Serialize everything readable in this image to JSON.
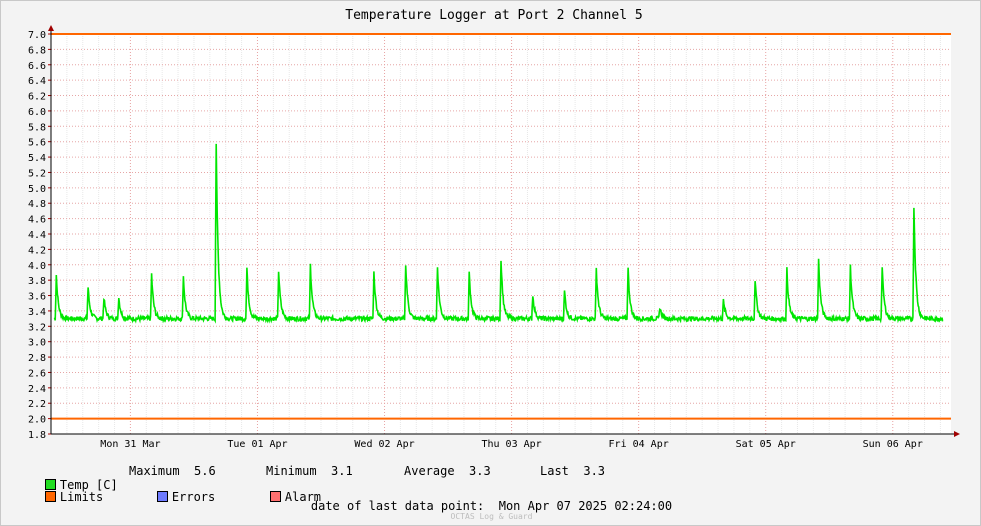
{
  "chart_data": {
    "type": "line",
    "title": "Temperature Logger at Port 2 Channel 5",
    "ylim": [
      1.8,
      7.0
    ],
    "y_ticks": [
      "7.0",
      "6.8",
      "6.6",
      "6.4",
      "6.2",
      "6.0",
      "5.8",
      "5.6",
      "5.4",
      "5.2",
      "5.0",
      "4.8",
      "4.6",
      "4.4",
      "4.2",
      "4.0",
      "3.8",
      "3.6",
      "3.4",
      "3.2",
      "3.0",
      "2.8",
      "2.6",
      "2.4",
      "2.2",
      "2.0",
      "1.8"
    ],
    "x_ticks": [
      "Mon 31 Mar",
      "Tue 01 Apr",
      "Wed 02 Apr",
      "Thu 03 Apr",
      "Fri 04 Apr",
      "Sat 05 Apr",
      "Sun 06 Apr"
    ],
    "x_range_hours": [
      0,
      170
    ],
    "day_tick_offset_hours": 3,
    "limits": {
      "upper": 7.0,
      "lower": 2.0
    },
    "series": [
      {
        "name": "Temp [C]",
        "color": "#00e600",
        "baseline": 3.3,
        "peaks": [
          {
            "x": 1.0,
            "y": 3.87
          },
          {
            "x": 7.0,
            "y": 3.71
          },
          {
            "x": 10.0,
            "y": 3.57
          },
          {
            "x": 12.8,
            "y": 3.58
          },
          {
            "x": 19.0,
            "y": 3.88
          },
          {
            "x": 25.0,
            "y": 3.85
          },
          {
            "x": 31.2,
            "y": 5.58
          },
          {
            "x": 37.0,
            "y": 3.96
          },
          {
            "x": 43.0,
            "y": 3.92
          },
          {
            "x": 49.0,
            "y": 4.0
          },
          {
            "x": 61.0,
            "y": 3.9
          },
          {
            "x": 67.0,
            "y": 4.02
          },
          {
            "x": 73.0,
            "y": 3.98
          },
          {
            "x": 79.0,
            "y": 3.89
          },
          {
            "x": 85.0,
            "y": 4.08
          },
          {
            "x": 91.0,
            "y": 3.61
          },
          {
            "x": 97.0,
            "y": 3.66
          },
          {
            "x": 103.0,
            "y": 3.95
          },
          {
            "x": 109.0,
            "y": 3.95
          },
          {
            "x": 115.0,
            "y": 3.45
          },
          {
            "x": 127.0,
            "y": 3.53
          },
          {
            "x": 133.0,
            "y": 3.81
          },
          {
            "x": 139.0,
            "y": 3.94
          },
          {
            "x": 145.0,
            "y": 4.06
          },
          {
            "x": 151.0,
            "y": 3.98
          },
          {
            "x": 157.0,
            "y": 3.96
          },
          {
            "x": 163.0,
            "y": 4.75
          }
        ]
      },
      {
        "name": "Limits",
        "color": "#ff6600"
      },
      {
        "name": "Errors",
        "color": "#6e7bff"
      },
      {
        "name": "Alarm",
        "color": "#ff7070"
      }
    ]
  },
  "stats": {
    "maximum_label": "Maximum",
    "maximum_value": "5.6",
    "minimum_label": "Minimum",
    "minimum_value": "3.1",
    "average_label": "Average",
    "average_value": "3.3",
    "last_label": "Last",
    "last_value": "3.3"
  },
  "footer": {
    "label": "date of last data point:",
    "value": "Mon Apr 07 2025 02:24:00",
    "credit": "OCTAS Log & Guard"
  }
}
